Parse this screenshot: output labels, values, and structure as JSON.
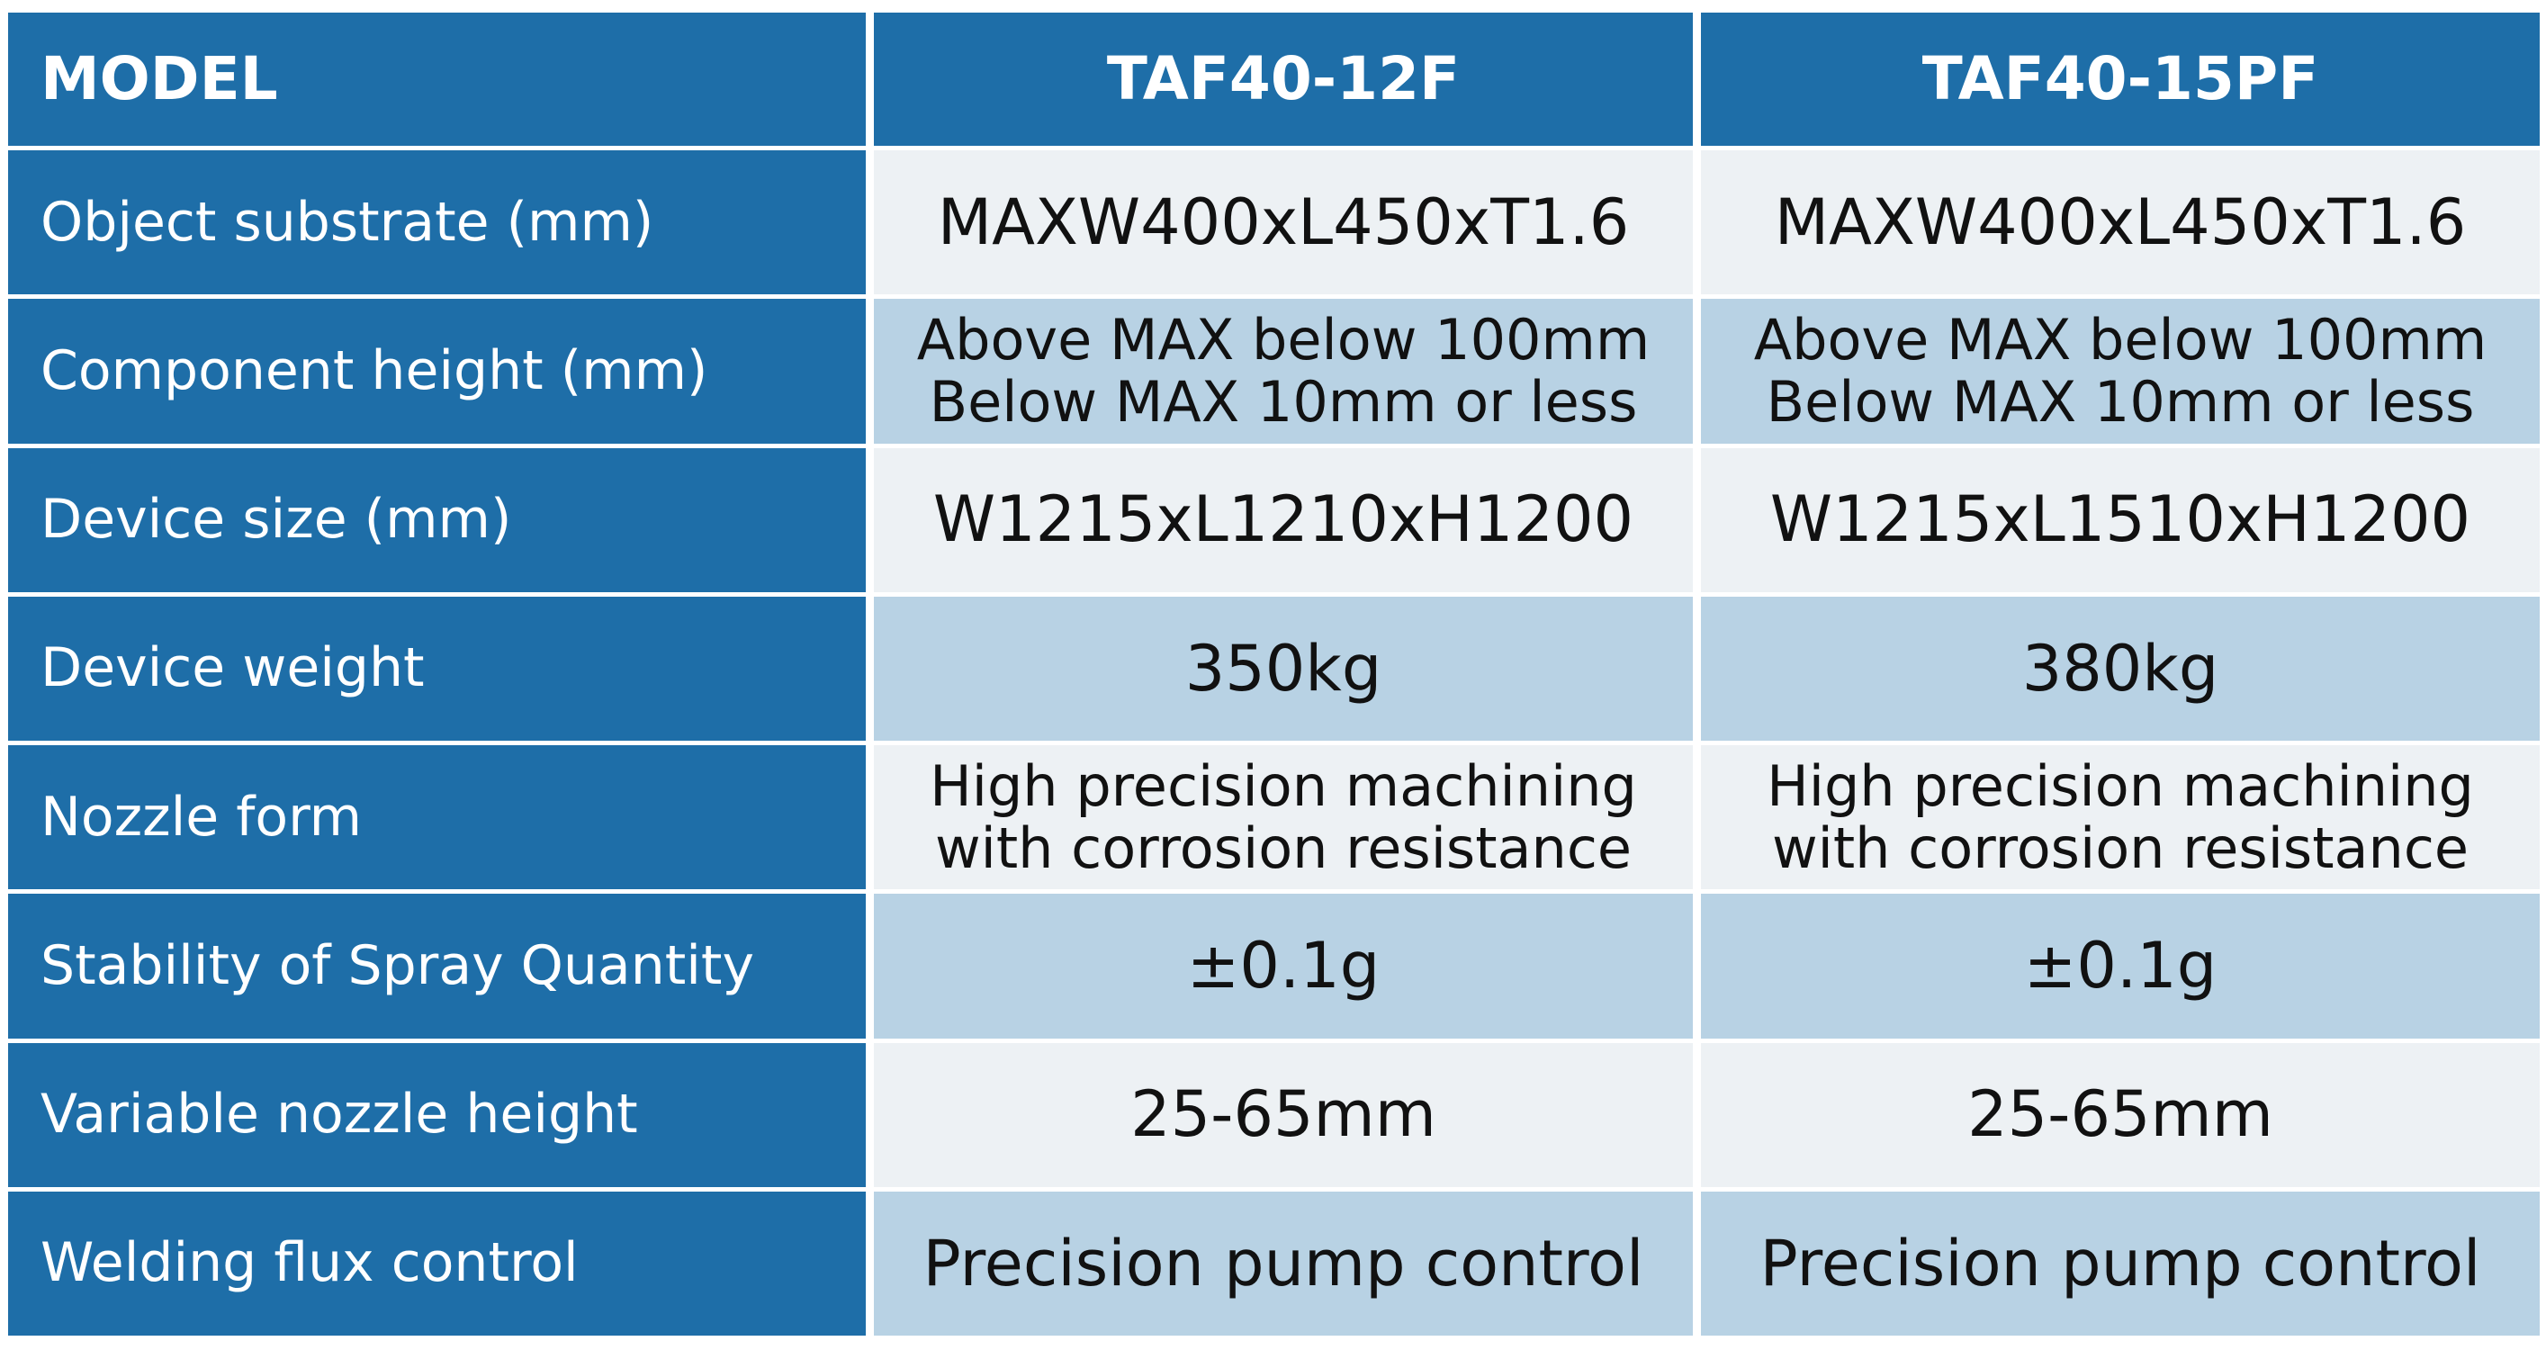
{
  "table": {
    "header": [
      "MODEL",
      "TAF40-12F",
      "TAF40-15PF"
    ],
    "rows": [
      [
        "Object substrate (mm)",
        "MAXW400xL450xT1.6",
        "MAXW400xL450xT1.6"
      ],
      [
        "Component height (mm)",
        "Above MAX below 100mm\nBelow MAX 10mm or less",
        "Above MAX below 100mm\nBelow MAX 10mm or less"
      ],
      [
        "Device size (mm)",
        "W1215xL1210xH1200",
        "W1215xL1510xH1200"
      ],
      [
        "Device weight",
        "350kg",
        "380kg"
      ],
      [
        "Nozzle form",
        "High precision machining\nwith corrosion resistance",
        "High precision machining\nwith corrosion resistance"
      ],
      [
        "Stability of Spray Quantity",
        "±0.1g",
        "±0.1g"
      ],
      [
        "Variable nozzle height",
        "25-65mm",
        "25-65mm"
      ],
      [
        "Welding flux control",
        "Precision pump control",
        "Precision pump control"
      ]
    ]
  }
}
